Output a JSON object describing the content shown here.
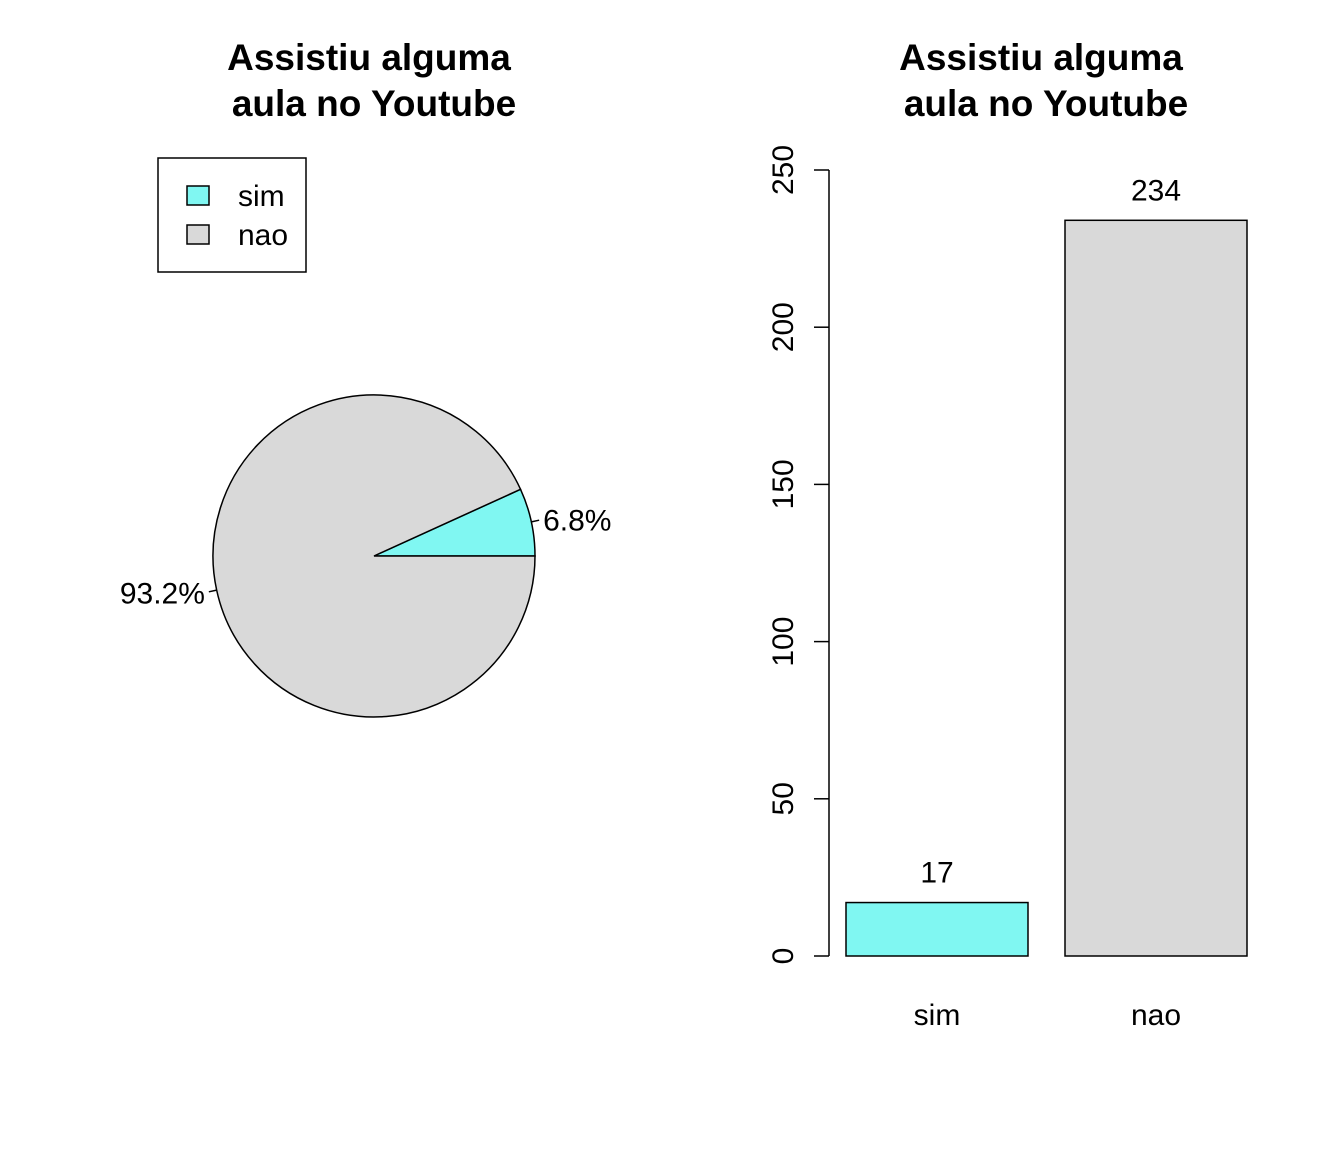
{
  "colors": {
    "sim": "#80F7F2",
    "nao": "#D9D9D9",
    "stroke": "#000000"
  },
  "chart_data": [
    {
      "type": "pie",
      "title": [
        "Assistiu alguma",
        "aula no Youtube"
      ],
      "legend": {
        "placement": "top-left",
        "entries": [
          "sim",
          "nao"
        ]
      },
      "slices": [
        {
          "category": "sim",
          "value": 6.8,
          "label": "6.8%"
        },
        {
          "category": "nao",
          "value": 93.2,
          "label": "93.2%"
        }
      ]
    },
    {
      "type": "bar",
      "title": [
        "Assistiu alguma",
        "aula no Youtube"
      ],
      "categories": [
        "sim",
        "nao"
      ],
      "values": [
        17,
        234
      ],
      "value_labels": [
        "17",
        "234"
      ],
      "ylim": [
        0,
        250
      ],
      "yticks": [
        0,
        50,
        100,
        150,
        200,
        250
      ],
      "grid": false
    }
  ]
}
